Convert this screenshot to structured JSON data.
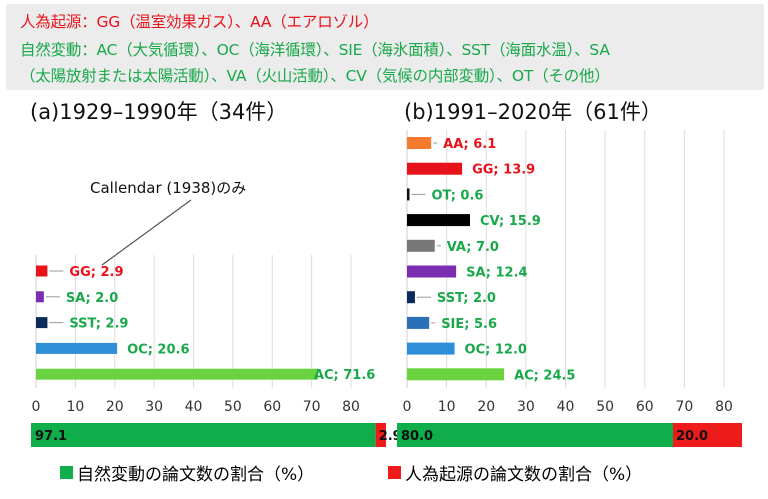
{
  "header": {
    "line1": "人為起源：GG（温室効果ガス）、AA（エアロゾル）",
    "line2": "自然変動：AC（大気循環）、OC（海洋循環）、SIE（海氷面積）、SST（海面水温）、SA",
    "line3": "（太陽放射または太陽活動）、VA（火山活動）、CV（気候の内部変動）、OT（その他）"
  },
  "colors": {
    "AA": "#f47a2e",
    "GG": "#e8121a",
    "OT": "#111111",
    "CV": "#000000",
    "VA": "#777777",
    "SA": "#7b2fb0",
    "SST": "#0b2a5a",
    "SIE": "#2a6fb8",
    "OC": "#2e8fd8",
    "AC": "#6ad33f",
    "natural": "#0fae4b",
    "human": "#ee1b1b",
    "label_human": "#e8121a",
    "label_natural": "#19a84a"
  },
  "chart_data": [
    {
      "type": "bar",
      "orientation": "horizontal",
      "title": "(a)1929–1990年（34件）",
      "annotation": "Callendar (1938)のみ",
      "xlim": [
        0,
        85
      ],
      "xticks": [
        0,
        10,
        20,
        30,
        40,
        50,
        60,
        70,
        80
      ],
      "grid": "vertical",
      "bars": [
        {
          "code": "GG",
          "value": 2.9,
          "label": "GG; 2.9",
          "group": "human"
        },
        {
          "code": "SA",
          "value": 2.0,
          "label": "SA; 2.0",
          "group": "natural"
        },
        {
          "code": "SST",
          "value": 2.9,
          "label": "SST; 2.9",
          "group": "natural"
        },
        {
          "code": "OC",
          "value": 20.6,
          "label": "OC; 20.6",
          "group": "natural"
        },
        {
          "code": "AC",
          "value": 71.6,
          "label": "AC; 71.6",
          "group": "natural"
        }
      ],
      "share": {
        "natural": 97.1,
        "human": 2.9,
        "natural_label": "97.1",
        "human_label": "2.9"
      }
    },
    {
      "type": "bar",
      "orientation": "horizontal",
      "title": "(b)1991–2020年（61件）",
      "xlim": [
        0,
        85
      ],
      "xticks": [
        0,
        10,
        20,
        30,
        40,
        50,
        60,
        70,
        80
      ],
      "grid": "vertical",
      "bars": [
        {
          "code": "AA",
          "value": 6.1,
          "label": "AA; 6.1",
          "group": "human"
        },
        {
          "code": "GG",
          "value": 13.9,
          "label": "GG; 13.9",
          "group": "human"
        },
        {
          "code": "OT",
          "value": 0.6,
          "label": "OT; 0.6",
          "group": "natural"
        },
        {
          "code": "CV",
          "value": 15.9,
          "label": "CV; 15.9",
          "group": "natural"
        },
        {
          "code": "VA",
          "value": 7.0,
          "label": "VA; 7.0",
          "group": "natural"
        },
        {
          "code": "SA",
          "value": 12.4,
          "label": "SA; 12.4",
          "group": "natural"
        },
        {
          "code": "SST",
          "value": 2.0,
          "label": "SST; 2.0",
          "group": "natural"
        },
        {
          "code": "SIE",
          "value": 5.6,
          "label": "SIE; 5.6",
          "group": "natural"
        },
        {
          "code": "OC",
          "value": 12.0,
          "label": "OC; 12.0",
          "group": "natural"
        },
        {
          "code": "AC",
          "value": 24.5,
          "label": "AC; 24.5",
          "group": "natural"
        }
      ],
      "share": {
        "natural": 80.0,
        "human": 20.0,
        "natural_label": "80.0",
        "human_label": "20.0"
      }
    }
  ],
  "legend": {
    "natural": "自然変動の論文数の割合（%）",
    "human": "人為起源の論文数の割合（%）"
  }
}
